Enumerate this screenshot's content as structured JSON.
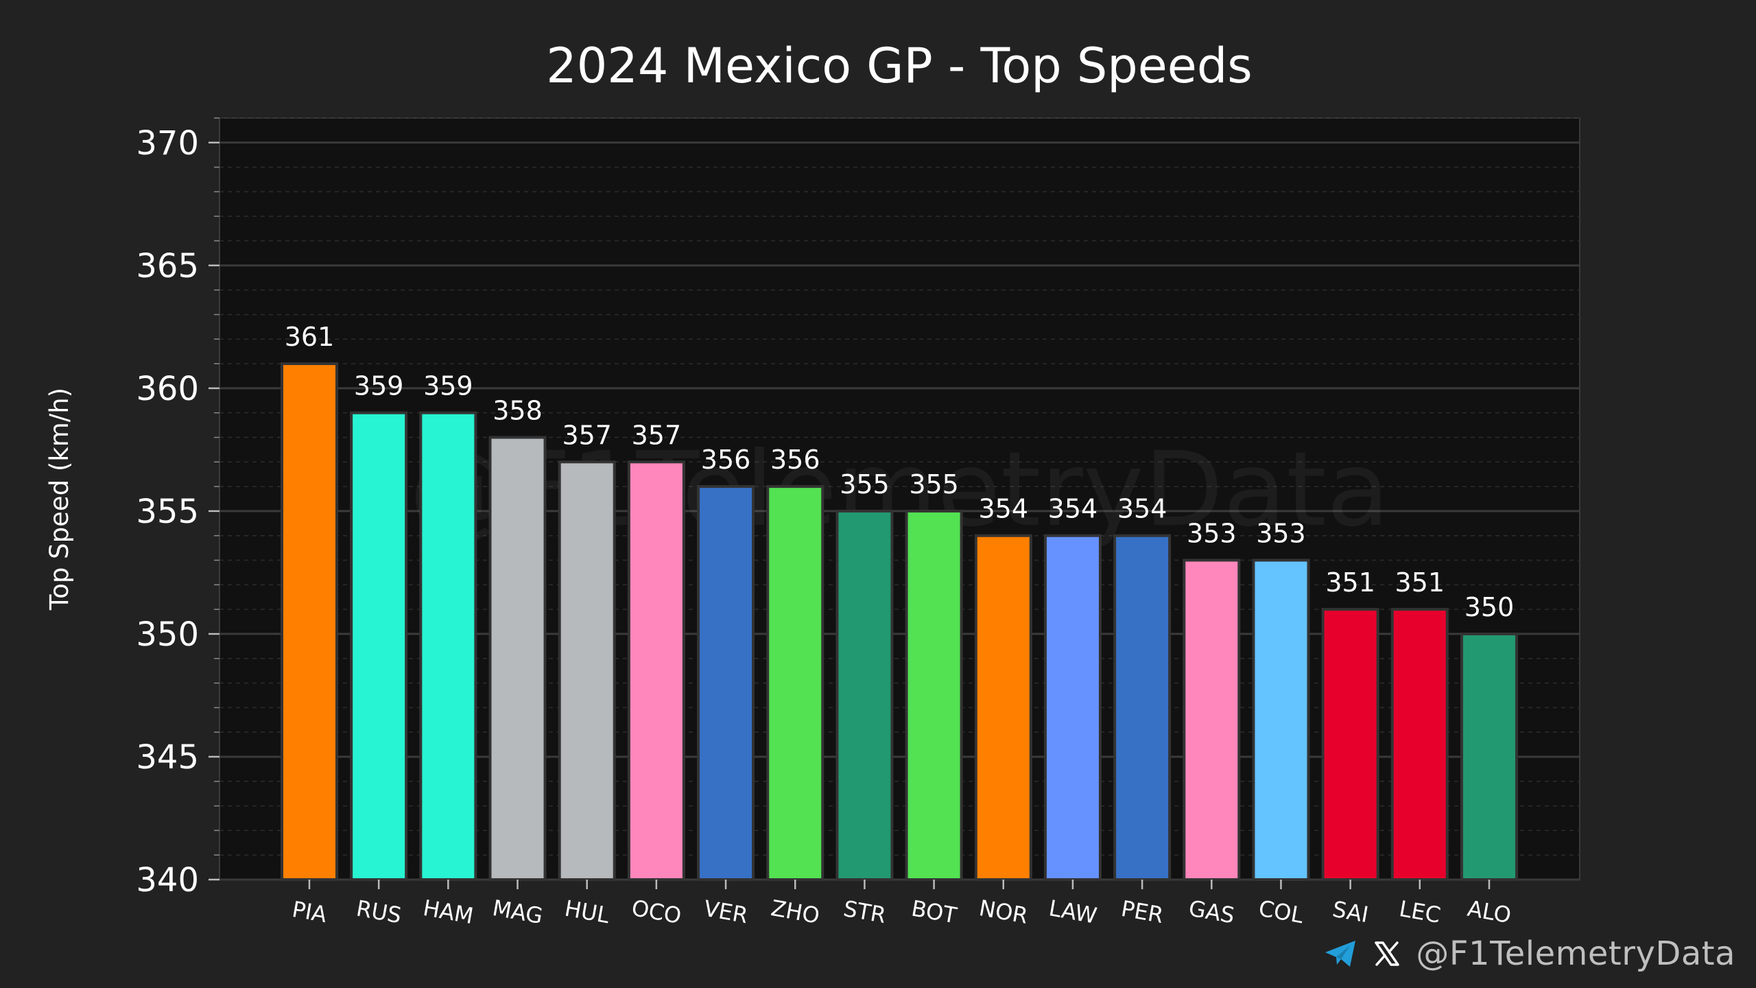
{
  "chart_data": {
    "type": "bar",
    "title": "2024 Mexico GP - Top Speeds",
    "xlabel": "",
    "ylabel": "Top Speed (km/h)",
    "ylim": [
      340,
      371
    ],
    "yticks": [
      340,
      345,
      350,
      355,
      360,
      365,
      370
    ],
    "grid": true,
    "categories": [
      "PIA",
      "RUS",
      "HAM",
      "MAG",
      "HUL",
      "OCO",
      "VER",
      "ZHO",
      "STR",
      "BOT",
      "NOR",
      "LAW",
      "PER",
      "GAS",
      "COL",
      "SAI",
      "LEC",
      "ALO"
    ],
    "values": [
      361,
      359,
      359,
      358,
      357,
      357,
      356,
      356,
      355,
      355,
      354,
      354,
      354,
      353,
      353,
      351,
      351,
      350
    ],
    "bar_colors": [
      "#FF8000",
      "#27F4D2",
      "#27F4D2",
      "#B6BABD",
      "#B6BABD",
      "#FF87BC",
      "#3671C6",
      "#52E252",
      "#229971",
      "#52E252",
      "#FF8000",
      "#6692FF",
      "#3671C6",
      "#FF87BC",
      "#64C4FF",
      "#E8002D",
      "#E8002D",
      "#229971"
    ],
    "data_labels": true
  },
  "watermark": "@F1TelemetryData",
  "footer": {
    "handle": "@F1TelemetryData",
    "icons": [
      "telegram-icon",
      "x-icon"
    ],
    "telegram_color": "#229ED9",
    "x_color": "#ffffff"
  },
  "colors": {
    "background": "#222222",
    "plot_background": "#111111",
    "grid_major": "#3a3a3a",
    "grid_minor": "#2c2c2c",
    "text": "#ffffff",
    "handle_text": "#bfbfbf"
  }
}
